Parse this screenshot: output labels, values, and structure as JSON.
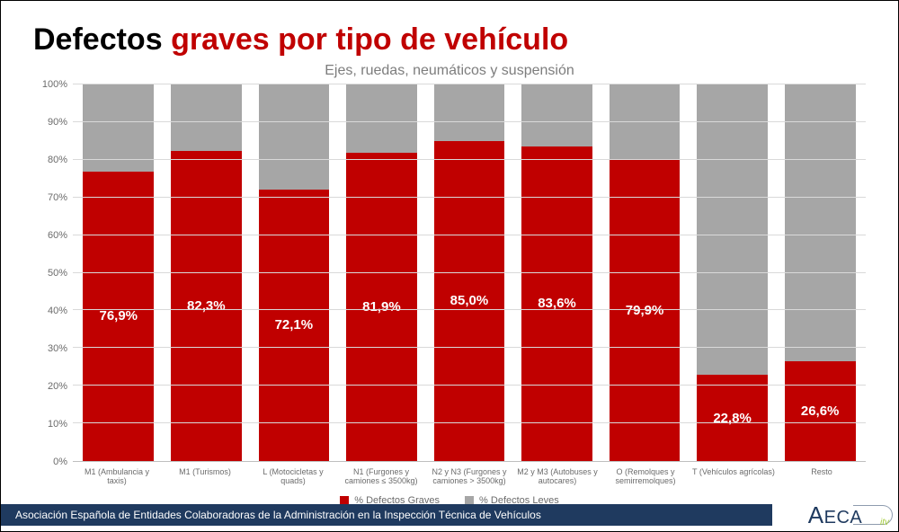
{
  "title_black": "Defectos ",
  "title_red": "graves por tipo de vehículo",
  "chart": {
    "type": "stacked-bar",
    "subtitle": "Ejes, ruedas, neumáticos y suspensión",
    "y_axis": {
      "min": 0,
      "max": 100,
      "step": 10,
      "suffix": "%",
      "tick_color": "#6b6b6b",
      "tick_fontsize": 11
    },
    "grid_color": "#d9d9d9",
    "colors": {
      "graves": "#c00000",
      "leves": "#a6a6a6"
    },
    "bar_label_color": "#ffffff",
    "bar_label_fontsize": 15,
    "categories": [
      {
        "label": "M1 (Ambulancia y taxis)",
        "graves": 76.9,
        "display": "76,9%"
      },
      {
        "label": "M1 (Turismos)",
        "graves": 82.3,
        "display": "82,3%"
      },
      {
        "label": "L (Motocicletas y quads)",
        "graves": 72.1,
        "display": "72,1%"
      },
      {
        "label": "N1 (Furgones y camiones ≤ 3500kg)",
        "graves": 81.9,
        "display": "81,9%"
      },
      {
        "label": "N2 y N3 (Furgones y camiones > 3500kg)",
        "graves": 85.0,
        "display": "85,0%"
      },
      {
        "label": "M2 y M3 (Autobuses y autocares)",
        "graves": 83.6,
        "display": "83,6%"
      },
      {
        "label": "O (Remolques y semirremolques)",
        "graves": 79.9,
        "display": "79,9%"
      },
      {
        "label": "T (Vehículos agrícolas)",
        "graves": 22.8,
        "display": "22,8%"
      },
      {
        "label": "Resto",
        "graves": 26.6,
        "display": "26,6%"
      }
    ],
    "legend": {
      "graves": "% Defectos Graves",
      "leves": "% Defectos Leves"
    }
  },
  "footer": {
    "text": "Asociación Española de Entidades Colaboradoras de la Administración en la Inspección Técnica de Vehículos",
    "bar_bg": "#1f3a5f",
    "logo_text": "AECA",
    "logo_sub": "itv"
  }
}
